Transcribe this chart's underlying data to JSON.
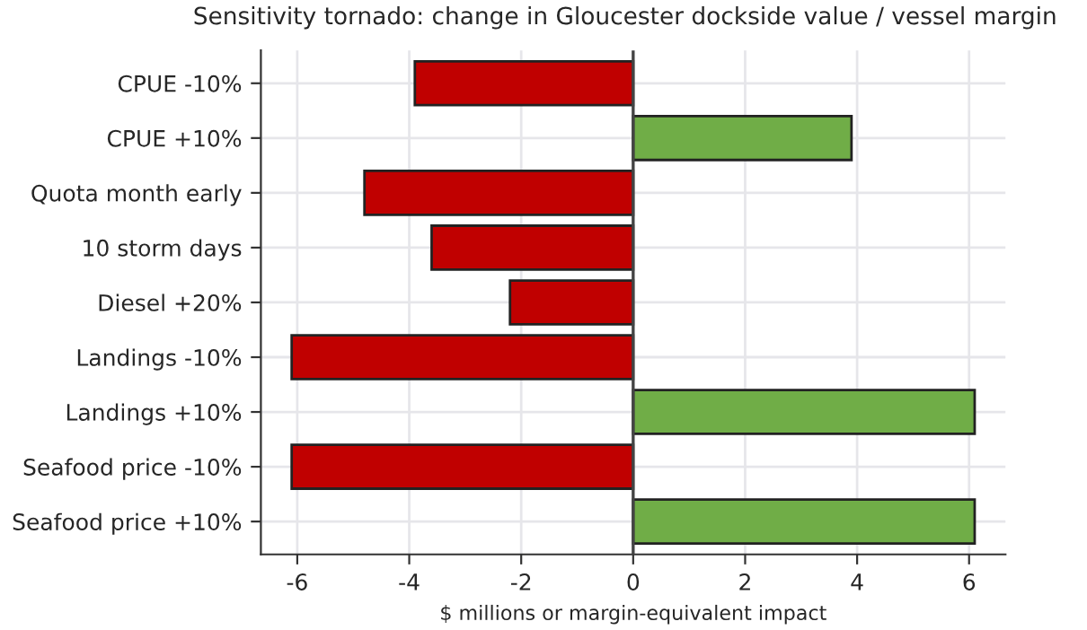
{
  "chart_data": {
    "type": "bar",
    "orientation": "horizontal",
    "title": "Sensitivity tornado: change in Gloucester dockside value / vessel margin",
    "xlabel": "$ millions or margin-equivalent impact",
    "categories": [
      "CPUE -10%",
      "CPUE +10%",
      "Quota month early",
      "10 storm days",
      "Diesel +20%",
      "Landings -10%",
      "Landings +10%",
      "Seafood price -10%",
      "Seafood price +10%"
    ],
    "values": [
      -3.9,
      3.9,
      -4.8,
      -3.6,
      -2.2,
      -6.1,
      6.1,
      -6.1,
      6.1
    ],
    "colors": [
      "#c00000",
      "#70ad47",
      "#c00000",
      "#c00000",
      "#c00000",
      "#c00000",
      "#70ad47",
      "#c00000",
      "#70ad47"
    ],
    "xlim": [
      -6.65,
      6.65
    ],
    "xticks": [
      -6,
      -4,
      -2,
      0,
      2,
      4,
      6
    ],
    "ref_lines": [
      {
        "axis": "x",
        "value": 0,
        "color": "#444444"
      }
    ],
    "grid": true
  }
}
